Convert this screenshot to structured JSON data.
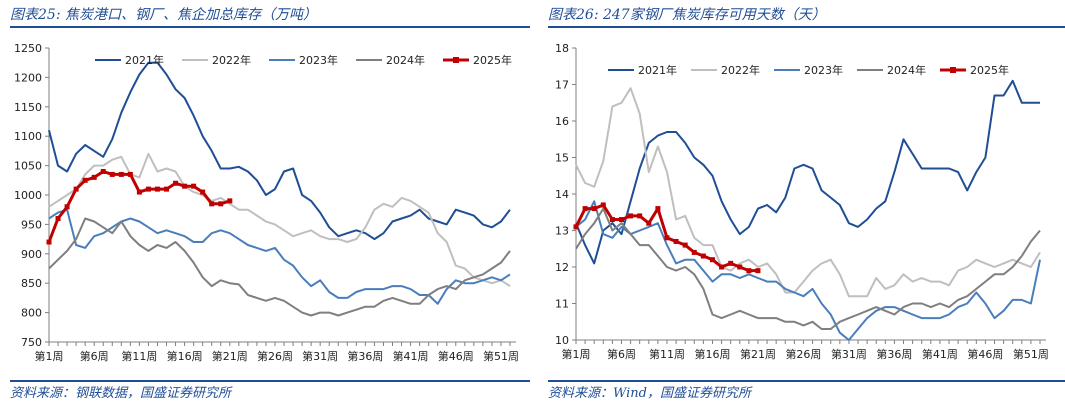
{
  "charts": [
    {
      "title": "图表25: 焦炭港口、钢厂、焦企加总库存（万吨）",
      "source": "资料来源：钢联数据，国盛证券研究所"
    },
    {
      "title": "图表26: 247家钢厂焦炭库存可用天数（天）",
      "source": "资料来源：Wind，国盛证券研究所"
    }
  ],
  "chart_data": [
    {
      "type": "line",
      "title": "图表25: 焦炭港口、钢厂、焦企加总库存（万吨）",
      "xlabel": "",
      "ylabel": "",
      "ylim": [
        750,
        1250
      ],
      "yticks": [
        750,
        800,
        850,
        900,
        950,
        1000,
        1050,
        1100,
        1150,
        1200,
        1250
      ],
      "xlim": [
        1,
        52
      ],
      "x_tick_labels": [
        "第1周",
        "第6周",
        "第11周",
        "第16周",
        "第21周",
        "第26周",
        "第31周",
        "第36周",
        "第41周",
        "第46周",
        "第51周"
      ],
      "legend_position": "top",
      "grid": false,
      "series": [
        {
          "name": "2021年",
          "color": "#1f4e96",
          "values": [
            1110,
            1050,
            1040,
            1070,
            1085,
            1075,
            1065,
            1095,
            1140,
            1175,
            1205,
            1225,
            1225,
            1205,
            1180,
            1165,
            1135,
            1100,
            1075,
            1045,
            1045,
            1048,
            1040,
            1025,
            1000,
            1010,
            1040,
            1045,
            1000,
            990,
            970,
            945,
            930,
            935,
            940,
            935,
            925,
            935,
            955,
            960,
            965,
            975,
            960,
            955,
            950,
            975,
            970,
            965,
            950,
            945,
            955,
            975
          ]
        },
        {
          "name": "2022年",
          "color": "#bfbfbf",
          "values": [
            980,
            990,
            1000,
            1010,
            1035,
            1050,
            1050,
            1060,
            1065,
            1035,
            1030,
            1070,
            1040,
            1045,
            1040,
            1015,
            1005,
            1000,
            990,
            995,
            985,
            975,
            975,
            965,
            955,
            950,
            940,
            930,
            935,
            940,
            930,
            925,
            925,
            920,
            925,
            945,
            975,
            985,
            980,
            995,
            990,
            980,
            970,
            935,
            920,
            880,
            875,
            860,
            855,
            850,
            855,
            845
          ]
        },
        {
          "name": "2023年",
          "color": "#4a7ebb",
          "values": [
            960,
            970,
            975,
            915,
            910,
            930,
            935,
            945,
            955,
            960,
            955,
            945,
            935,
            940,
            935,
            930,
            920,
            920,
            935,
            940,
            935,
            925,
            915,
            910,
            905,
            910,
            890,
            880,
            860,
            845,
            855,
            835,
            825,
            825,
            835,
            840,
            840,
            840,
            845,
            845,
            840,
            830,
            830,
            815,
            840,
            855,
            850,
            850,
            855,
            860,
            855,
            865
          ]
        },
        {
          "name": "2024年",
          "color": "#7f7f7f",
          "values": [
            875,
            890,
            905,
            925,
            960,
            955,
            945,
            935,
            955,
            930,
            915,
            905,
            915,
            910,
            920,
            905,
            885,
            860,
            845,
            855,
            850,
            848,
            830,
            825,
            820,
            825,
            820,
            810,
            800,
            795,
            800,
            800,
            795,
            800,
            805,
            810,
            810,
            820,
            825,
            820,
            815,
            815,
            830,
            840,
            845,
            840,
            855,
            860,
            865,
            875,
            885,
            905
          ]
        },
        {
          "name": "2025年",
          "color": "#c00000",
          "values": [
            920,
            960,
            980,
            1010,
            1025,
            1030,
            1040,
            1035,
            1035,
            1035,
            1005,
            1010,
            1010,
            1010,
            1020,
            1015,
            1015,
            1005,
            985,
            985,
            990
          ]
        }
      ]
    },
    {
      "type": "line",
      "title": "图表26: 247家钢厂焦炭库存可用天数（天）",
      "xlabel": "",
      "ylabel": "",
      "ylim": [
        10,
        18
      ],
      "yticks": [
        10,
        11,
        12,
        13,
        14,
        15,
        16,
        17,
        18
      ],
      "xlim": [
        1,
        52
      ],
      "x_tick_labels": [
        "第1周",
        "第6周",
        "第11周",
        "第16周",
        "第21周",
        "第26周",
        "第31周",
        "第36周",
        "第41周",
        "第46周",
        "第51周"
      ],
      "legend_position": "top",
      "grid": false,
      "series": [
        {
          "name": "2021年",
          "color": "#1f4e96",
          "values": [
            13.2,
            12.6,
            12.1,
            13.0,
            13.2,
            12.9,
            13.8,
            14.7,
            15.4,
            15.6,
            15.7,
            15.7,
            15.4,
            15.0,
            14.8,
            14.5,
            13.8,
            13.3,
            12.9,
            13.1,
            13.6,
            13.7,
            13.5,
            13.9,
            14.7,
            14.8,
            14.7,
            14.1,
            13.9,
            13.7,
            13.2,
            13.1,
            13.3,
            13.6,
            13.8,
            14.6,
            15.5,
            15.1,
            14.7,
            14.7,
            14.7,
            14.7,
            14.6,
            14.1,
            14.6,
            15.0,
            16.7,
            16.7,
            17.1,
            16.5,
            16.5,
            16.5
          ]
        },
        {
          "name": "2022年",
          "color": "#bfbfbf",
          "values": [
            14.8,
            14.3,
            14.2,
            14.9,
            16.4,
            16.5,
            16.9,
            16.2,
            14.6,
            15.3,
            14.6,
            13.3,
            13.4,
            12.8,
            12.6,
            12.6,
            12.0,
            11.9,
            12.1,
            12.2,
            12.0,
            12.1,
            11.8,
            11.3,
            11.3,
            11.6,
            11.9,
            12.1,
            12.2,
            11.8,
            11.2,
            11.2,
            11.2,
            11.7,
            11.4,
            11.5,
            11.8,
            11.6,
            11.7,
            11.6,
            11.6,
            11.5,
            11.9,
            12.0,
            12.2,
            12.1,
            12.0,
            12.1,
            12.2,
            12.1,
            12.0,
            12.4
          ]
        },
        {
          "name": "2023年",
          "color": "#4a7ebb",
          "values": [
            13.1,
            13.3,
            13.8,
            12.9,
            12.8,
            13.1,
            12.9,
            13.0,
            13.1,
            13.2,
            12.6,
            12.1,
            12.2,
            12.2,
            11.9,
            11.6,
            11.8,
            11.8,
            11.7,
            11.8,
            11.7,
            11.6,
            11.6,
            11.4,
            11.3,
            11.2,
            11.4,
            11.0,
            10.7,
            10.2,
            10.0,
            10.3,
            10.6,
            10.8,
            10.9,
            10.9,
            10.8,
            10.7,
            10.6,
            10.6,
            10.6,
            10.7,
            10.9,
            11.0,
            11.3,
            11.0,
            10.6,
            10.8,
            11.1,
            11.1,
            11.0,
            12.2
          ]
        },
        {
          "name": "2024年",
          "color": "#7f7f7f",
          "values": [
            12.5,
            12.9,
            13.2,
            13.6,
            13.0,
            13.2,
            12.9,
            12.6,
            12.6,
            12.3,
            12.0,
            11.9,
            12.0,
            11.8,
            11.4,
            10.7,
            10.6,
            10.7,
            10.8,
            10.7,
            10.6,
            10.6,
            10.6,
            10.5,
            10.5,
            10.4,
            10.5,
            10.3,
            10.3,
            10.5,
            10.6,
            10.7,
            10.8,
            10.9,
            10.8,
            10.7,
            10.9,
            11.0,
            11.0,
            10.9,
            11.0,
            10.9,
            11.1,
            11.2,
            11.4,
            11.6,
            11.8,
            11.8,
            12.0,
            12.3,
            12.7,
            13.0
          ]
        },
        {
          "name": "2025年",
          "color": "#c00000",
          "values": [
            13.1,
            13.6,
            13.6,
            13.7,
            13.3,
            13.3,
            13.4,
            13.4,
            13.2,
            13.6,
            12.8,
            12.7,
            12.6,
            12.4,
            12.3,
            12.2,
            12.0,
            12.1,
            12.0,
            11.9,
            11.9
          ]
        }
      ]
    }
  ]
}
